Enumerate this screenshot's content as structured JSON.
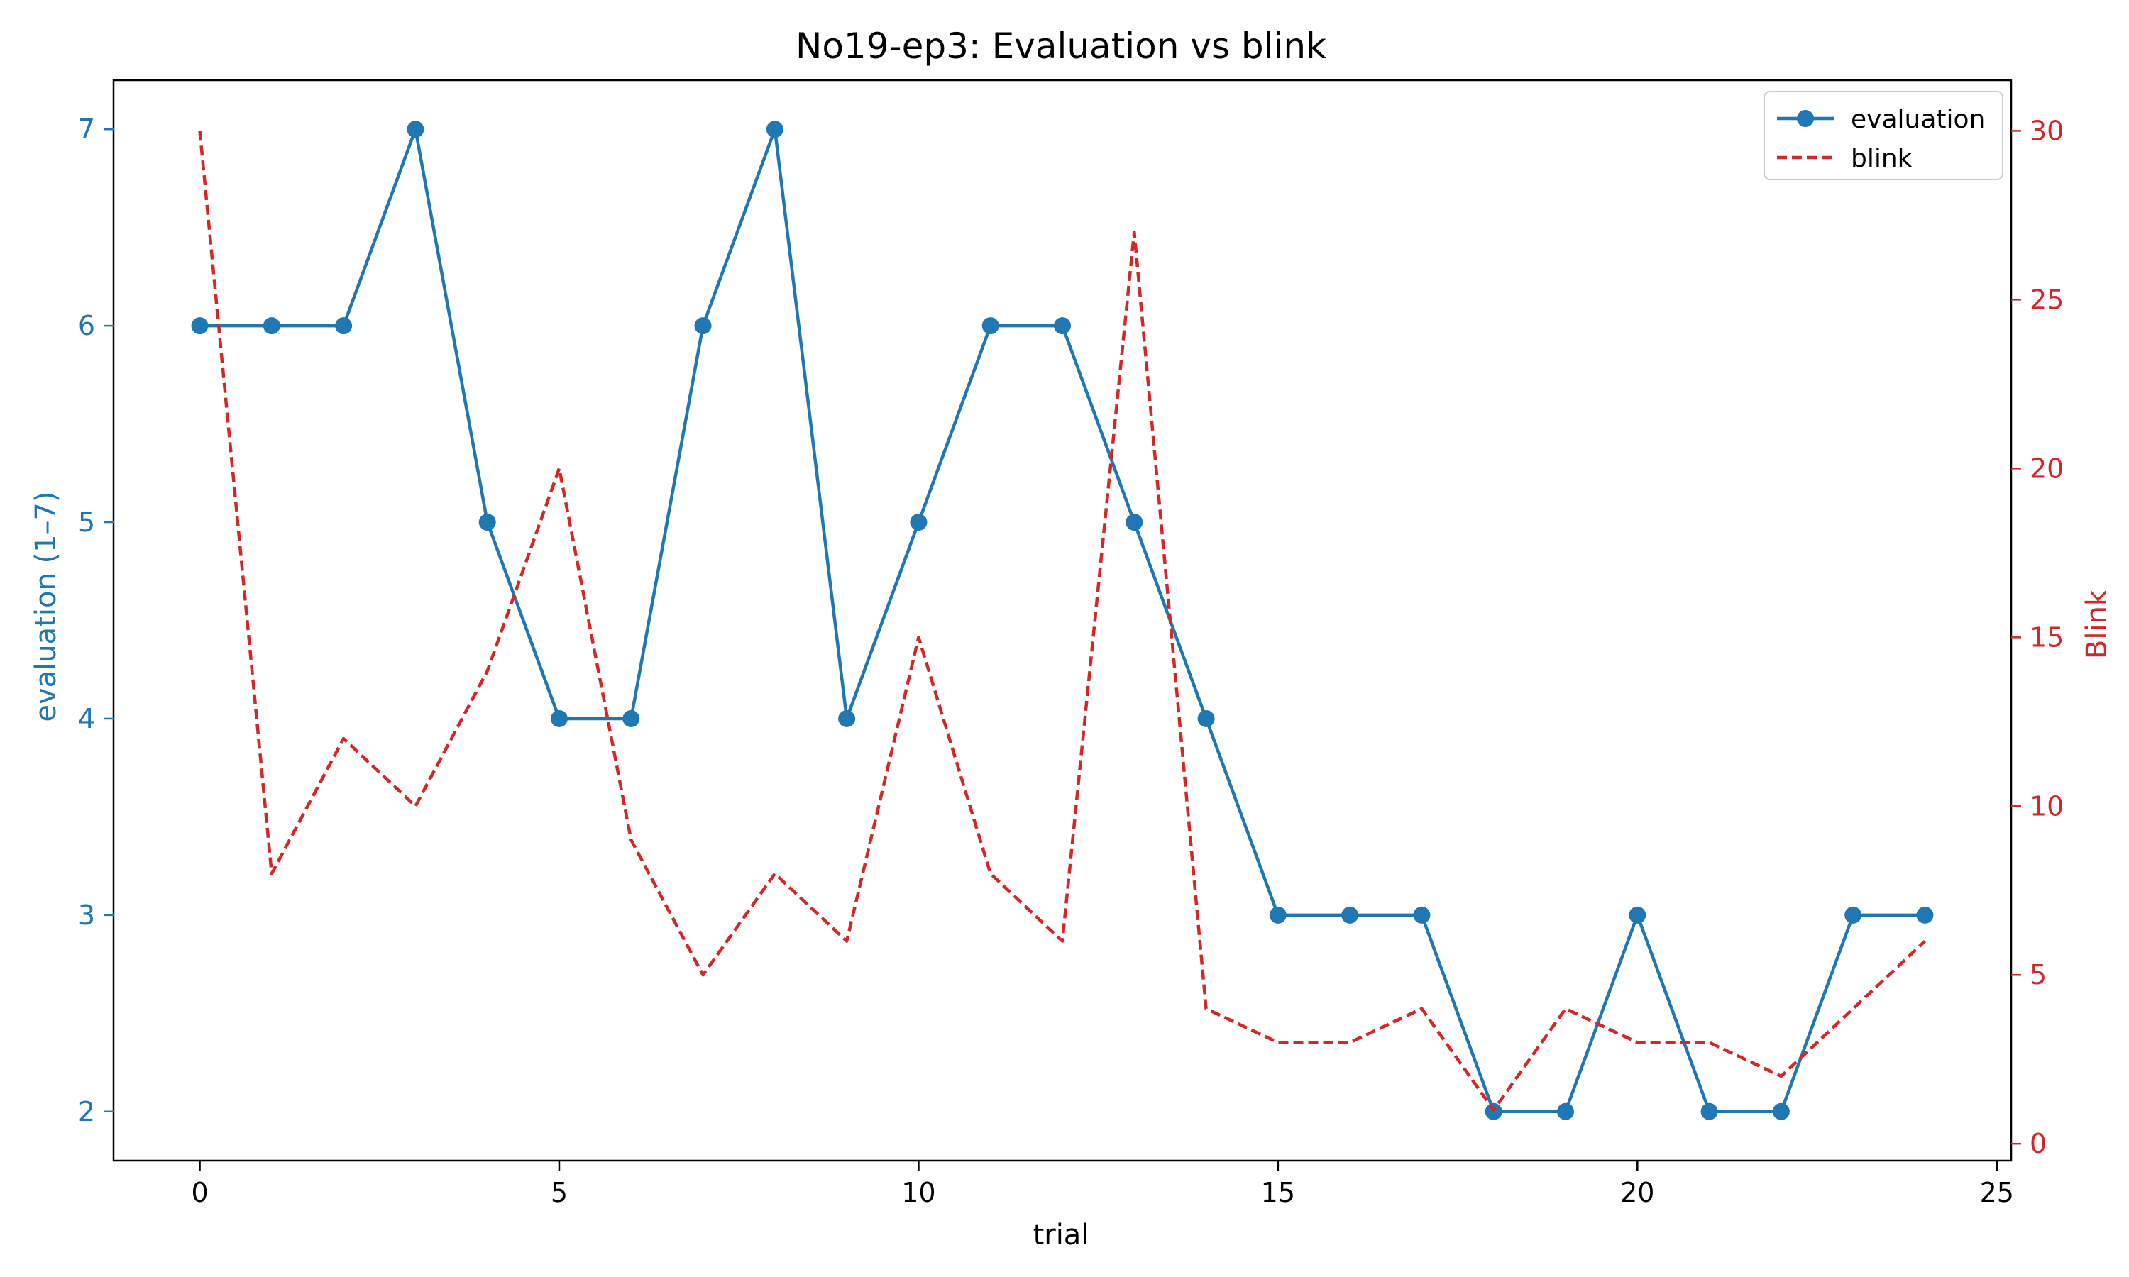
{
  "chart_data": {
    "type": "line",
    "title": "No19-ep3: Evaluation vs blink",
    "xlabel": "trial",
    "ylabel_left": "evaluation (1–7)",
    "ylabel_right": "Blink",
    "xlim": [
      -1.2,
      25.2
    ],
    "ylim_left": [
      1.75,
      7.25
    ],
    "ylim_right": [
      -0.5,
      31.5
    ],
    "x_ticks": [
      0,
      5,
      10,
      15,
      20,
      25
    ],
    "y_ticks_left": [
      2,
      3,
      4,
      5,
      6,
      7
    ],
    "y_ticks_right": [
      0,
      5,
      10,
      15,
      20,
      25,
      30
    ],
    "legend_position": "top-right",
    "grid": false,
    "x": [
      0,
      1,
      2,
      3,
      4,
      5,
      6,
      7,
      8,
      9,
      10,
      11,
      12,
      13,
      14,
      15,
      16,
      17,
      18,
      19,
      20,
      21,
      22,
      23,
      24
    ],
    "series": [
      {
        "name": "evaluation",
        "axis": "left",
        "color": "#1f77b4",
        "style": "solid-markers",
        "values": [
          6,
          6,
          6,
          7,
          5,
          4,
          4,
          6,
          7,
          4,
          5,
          6,
          6,
          5,
          4,
          3,
          3,
          3,
          2,
          2,
          3,
          2,
          2,
          3,
          3
        ]
      },
      {
        "name": "blink",
        "axis": "right",
        "color": "#d62728",
        "style": "dashed",
        "values": [
          30,
          8,
          12,
          10,
          14,
          20,
          9,
          5,
          8,
          6,
          15,
          8,
          6,
          27,
          4,
          3,
          3,
          4,
          1,
          4,
          3,
          3,
          2,
          4,
          6
        ]
      }
    ]
  }
}
